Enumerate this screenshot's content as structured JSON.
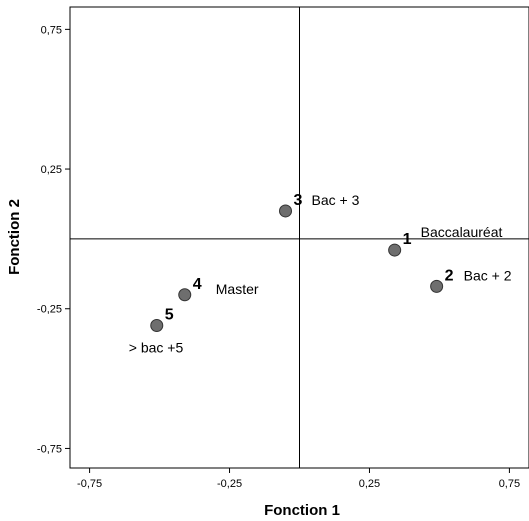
{
  "chart_data": {
    "type": "scatter",
    "title": "",
    "xlabel": "Fonction 1",
    "ylabel": "Fonction 2",
    "xlim": [
      -0.82,
      0.82
    ],
    "ylim": [
      -0.82,
      0.83
    ],
    "x_ticks": [
      -0.75,
      -0.25,
      0.25,
      0.75
    ],
    "x_tick_labels": [
      "-0,75",
      "-0,25",
      "0,25",
      "0,75"
    ],
    "y_ticks": [
      0.75,
      0.25,
      -0.25,
      -0.75
    ],
    "y_tick_labels": [
      "0,75",
      "0,25",
      "-0,25",
      "-0,75"
    ],
    "grid": false,
    "reference_lines": {
      "x": 0.0,
      "y": 0.0
    },
    "marker_color": "#6e6e6e",
    "points": [
      {
        "id": "1",
        "label": "Baccalauréat",
        "x": 0.34,
        "y": -0.04
      },
      {
        "id": "2",
        "label": "Bac + 2",
        "x": 0.49,
        "y": -0.17
      },
      {
        "id": "3",
        "label": "Bac + 3",
        "x": -0.05,
        "y": 0.1
      },
      {
        "id": "4",
        "label": "Master",
        "x": -0.41,
        "y": -0.2
      },
      {
        "id": "5",
        "label": "> bac +5",
        "x": -0.51,
        "y": -0.31
      }
    ]
  }
}
